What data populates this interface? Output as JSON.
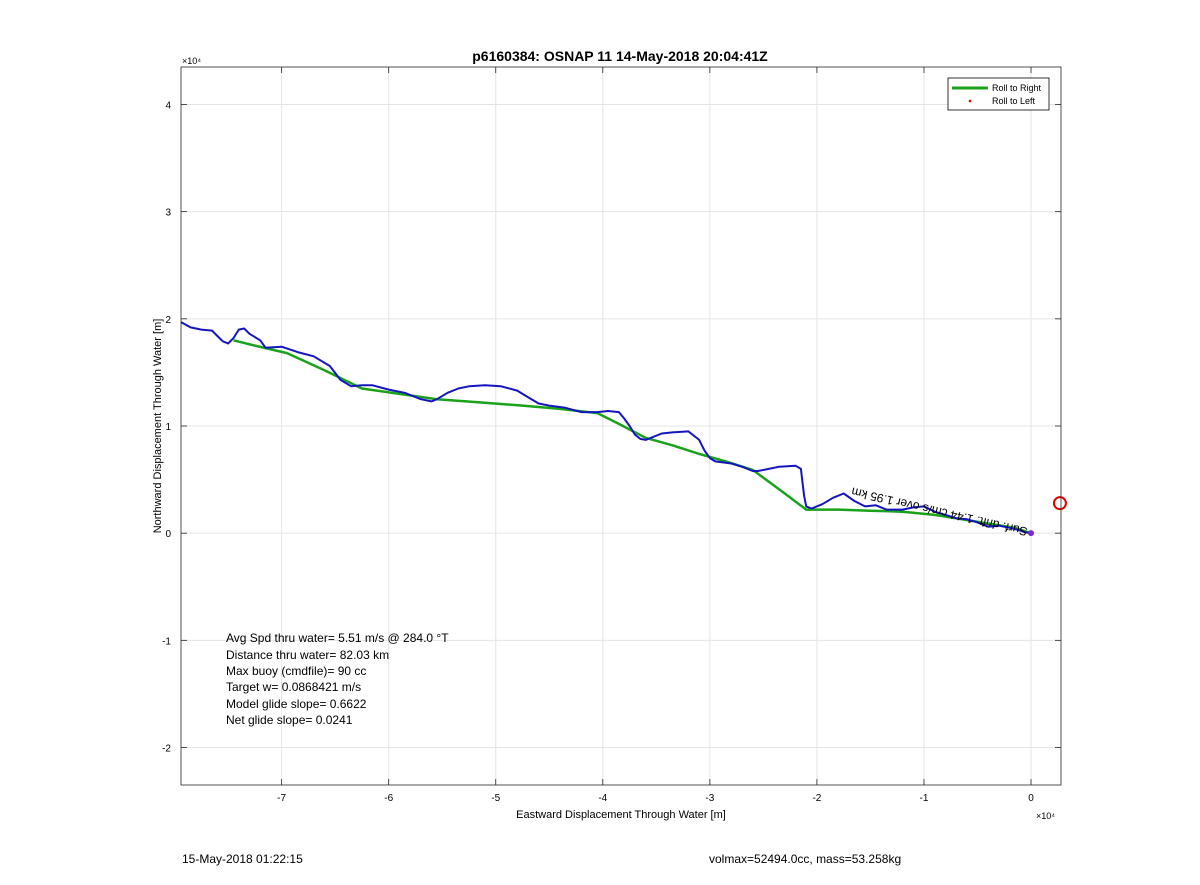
{
  "chart_data": {
    "type": "line",
    "title": "p6160384: OSNAP 11 14-May-2018 20:04:41Z",
    "xlabel": "Eastward Displacement Through Water [m]",
    "ylabel": "Northward Displacement Through Water [m]",
    "x_exponent_label": "×10⁴",
    "y_exponent_label": "×10⁴",
    "xlim": [
      -79400,
      2800
    ],
    "ylim": [
      -23500,
      43500
    ],
    "x_ticks": [
      -70000,
      -60000,
      -50000,
      -40000,
      -30000,
      -20000,
      -10000,
      0
    ],
    "x_tick_labels": [
      "-7",
      "-6",
      "-5",
      "-4",
      "-3",
      "-2",
      "-1",
      "0"
    ],
    "y_ticks": [
      -20000,
      -10000,
      0,
      10000,
      20000,
      30000,
      40000
    ],
    "y_tick_labels": [
      "-2",
      "-1",
      "0",
      "1",
      "2",
      "3",
      "4"
    ],
    "grid": true,
    "legend_position": "top-right",
    "legend": [
      {
        "name": "Roll to Right",
        "color": "#1aa31a",
        "style": "line"
      },
      {
        "name": "Roll to Left",
        "color": "#e00000",
        "style": "dot"
      }
    ],
    "series": [
      {
        "name": "Roll to Right",
        "color": "#1aa31a",
        "x": [
          -74500,
          -72500,
          -69500,
          -66000,
          -62500,
          -59000,
          -55500,
          -51500,
          -47500,
          -44000,
          -40500,
          -38500,
          -36000,
          -33500,
          -31000,
          -28500,
          -26000,
          -23000,
          -21000,
          -18000,
          -15000,
          -12000,
          -9000,
          -6500,
          -4000,
          -1500,
          0
        ],
        "y": [
          18000,
          17500,
          16800,
          15200,
          13500,
          13000,
          12500,
          12200,
          11900,
          11600,
          11200,
          10200,
          8900,
          8200,
          7400,
          6700,
          5900,
          3700,
          2200,
          2200,
          2100,
          2000,
          1700,
          1300,
          900,
          500,
          0
        ]
      },
      {
        "name": "track",
        "color": "#1515c0",
        "x": [
          -79400,
          -78500,
          -77500,
          -76500,
          -76000,
          -75500,
          -75000,
          -74500,
          -74000,
          -73500,
          -73000,
          -72000,
          -71500,
          -70000,
          -68500,
          -67000,
          -65500,
          -64500,
          -63500,
          -62500,
          -61500,
          -60000,
          -58500,
          -57000,
          -56000,
          -55500,
          -54500,
          -53500,
          -52500,
          -51000,
          -49500,
          -48000,
          -47000,
          -46000,
          -45000,
          -43500,
          -42000,
          -41000,
          -40500,
          -39500,
          -38500,
          -38000,
          -37500,
          -37000,
          -36500,
          -36000,
          -35500,
          -34500,
          -33500,
          -32000,
          -31000,
          -30500,
          -30000,
          -29500,
          -28000,
          -27000,
          -26000,
          -25500,
          -24500,
          -23500,
          -22000,
          -21500,
          -21200,
          -21000,
          -20500,
          -19500,
          -18500,
          -17500,
          -16500,
          -15500,
          -14500,
          -13500,
          -12000,
          -11000,
          -10000,
          -9000,
          -8000,
          -7000,
          -6000,
          -5000,
          -4000,
          -3000,
          -2000,
          -1200,
          -600,
          0
        ],
        "y": [
          19700,
          19200,
          19000,
          18900,
          18400,
          17900,
          17700,
          18200,
          19000,
          19100,
          18600,
          18000,
          17300,
          17400,
          16900,
          16500,
          15600,
          14300,
          13700,
          13800,
          13800,
          13400,
          13100,
          12500,
          12300,
          12500,
          13100,
          13500,
          13700,
          13800,
          13700,
          13300,
          12700,
          12100,
          11900,
          11700,
          11300,
          11300,
          11300,
          11400,
          11300,
          10700,
          10000,
          9200,
          8800,
          8700,
          8900,
          9300,
          9400,
          9500,
          8700,
          7700,
          7000,
          6700,
          6500,
          6200,
          5800,
          5800,
          6000,
          6200,
          6300,
          6000,
          3500,
          2500,
          2300,
          2700,
          3300,
          3700,
          3000,
          2500,
          2600,
          2200,
          2200,
          2400,
          2500,
          2000,
          1700,
          1400,
          1300,
          1000,
          600,
          700,
          500,
          300,
          100,
          0
        ]
      }
    ],
    "markers": [
      {
        "name": "end-marker",
        "x": 2700,
        "y": 2800,
        "color": "#e00000"
      }
    ],
    "annotations": {
      "rotated_label": "Surf. drift: 1.44 cm/s over 1.95 km",
      "stats": [
        "Avg Spd thru water=  5.51 m/s @ 284.0 °T",
        "Distance thru water= 82.03 km",
        "Max buoy (cmdfile)= 90 cc",
        "Target w= 0.0868421 m/s",
        "Model glide slope= 0.6622",
        "Net glide slope= 0.0241"
      ]
    }
  },
  "footer": {
    "timestamp": "15-May-2018 01:22:15",
    "mass_info": "volmax=52494.0cc, mass=53.258kg"
  }
}
